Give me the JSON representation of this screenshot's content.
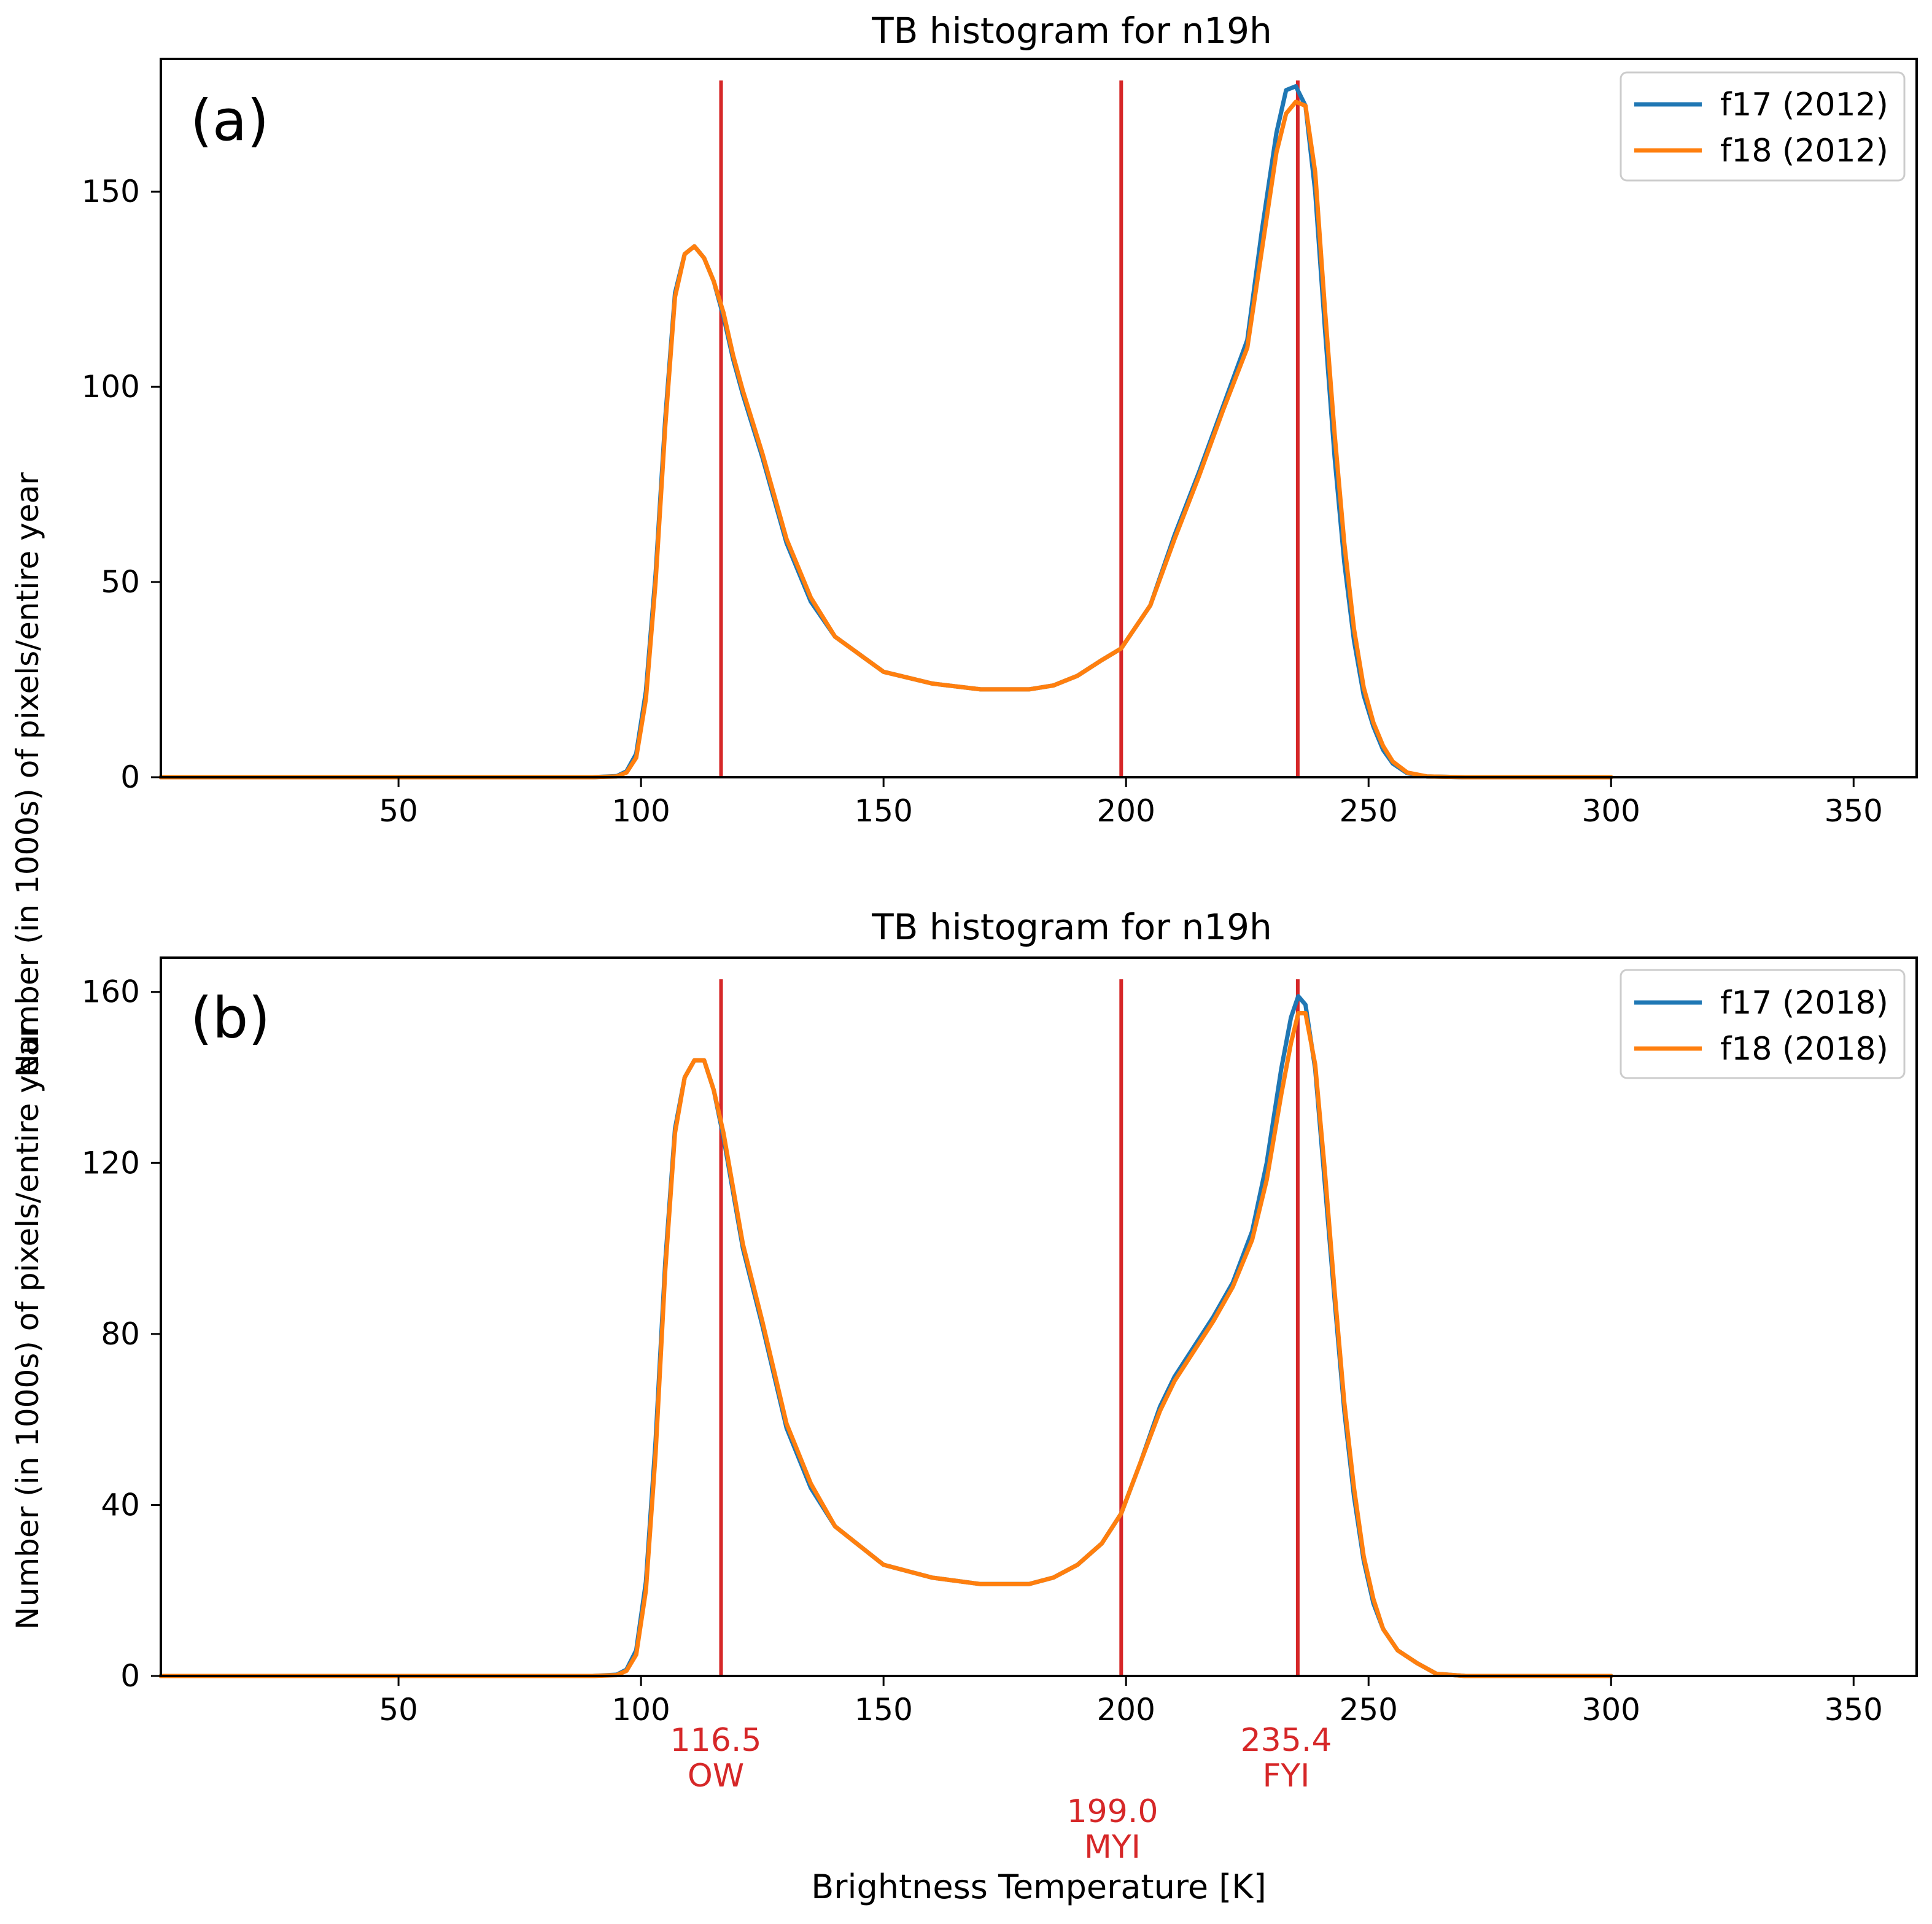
{
  "chart_data": [
    {
      "type": "line",
      "panel_label": "(a)",
      "title": "TB histogram for n19h",
      "xlabel": "",
      "ylabel": "Number (in 1000s) of pixels/entire year",
      "xlim": [
        1,
        363
      ],
      "ylim": [
        0,
        184
      ],
      "xticks": [
        50,
        100,
        150,
        200,
        250,
        300,
        350
      ],
      "yticks": [
        0,
        50,
        100,
        150
      ],
      "x": [
        1,
        90,
        95,
        97,
        99,
        101,
        103,
        105,
        107,
        109,
        111,
        113,
        115,
        117,
        119,
        121,
        125,
        130,
        135,
        140,
        150,
        160,
        170,
        180,
        185,
        190,
        195,
        199,
        205,
        210,
        215,
        220,
        225,
        228,
        231,
        233,
        235,
        237,
        239,
        241,
        243,
        245,
        247,
        249,
        251,
        253,
        255,
        258,
        262,
        270,
        300
      ],
      "series": [
        {
          "name": "f17 (2012)",
          "color": "#1f77b4",
          "y": [
            0,
            0,
            0.3,
            1.5,
            6,
            22,
            52,
            92,
            124,
            134,
            136,
            133,
            127,
            118,
            107,
            98,
            82,
            60,
            45,
            36,
            27,
            24,
            22.5,
            22.5,
            23.5,
            26,
            30,
            33,
            44,
            62,
            78,
            95,
            112,
            140,
            165,
            176,
            177,
            172,
            150,
            115,
            82,
            55,
            35,
            21,
            13,
            7,
            3.5,
            1,
            0.2,
            0,
            0
          ]
        },
        {
          "name": "f18 (2012)",
          "color": "#ff7f0e",
          "y": [
            0,
            0,
            0.2,
            1.2,
            5,
            20,
            50,
            90,
            123,
            134,
            136,
            133,
            127,
            119,
            108,
            99,
            83,
            61,
            46,
            36,
            27,
            24,
            22.5,
            22.5,
            23.5,
            26,
            30,
            33,
            44,
            61,
            77,
            94,
            110,
            135,
            160,
            170,
            173,
            172,
            155,
            120,
            88,
            60,
            38,
            23,
            14,
            8,
            4,
            1.2,
            0.2,
            0,
            0
          ]
        }
      ],
      "vlines": [
        116.5,
        199.0,
        235.4
      ],
      "vline_color": "#d62728"
    },
    {
      "type": "line",
      "panel_label": "(b)",
      "title": "TB histogram for n19h",
      "xlabel": "Brightness Temperature [K]",
      "ylabel": "Number (in 1000s) of pixels/entire year",
      "xlim": [
        1,
        363
      ],
      "ylim": [
        0,
        168
      ],
      "xticks": [
        50,
        100,
        150,
        200,
        250,
        300,
        350
      ],
      "yticks": [
        0,
        40,
        80,
        120,
        160
      ],
      "x": [
        1,
        90,
        95,
        97,
        99,
        101,
        103,
        105,
        107,
        109,
        111,
        113,
        115,
        117,
        119,
        121,
        125,
        130,
        135,
        140,
        150,
        160,
        170,
        180,
        185,
        190,
        195,
        199,
        203,
        207,
        210,
        214,
        218,
        222,
        226,
        229,
        232,
        234,
        235.5,
        237,
        239,
        241,
        243,
        245,
        247,
        249,
        251,
        253,
        256,
        260,
        264,
        270,
        300
      ],
      "series": [
        {
          "name": "f17 (2018)",
          "color": "#1f77b4",
          "y": [
            0,
            0,
            0.3,
            1.5,
            6,
            22,
            55,
            97,
            128,
            140,
            144,
            144,
            137,
            126,
            113,
            100,
            82,
            58,
            44,
            35,
            26,
            23,
            21.5,
            21.5,
            23,
            26,
            31,
            38,
            50,
            63,
            70,
            77,
            84,
            92,
            104,
            120,
            142,
            154,
            159,
            157,
            142,
            115,
            88,
            62,
            42,
            27,
            17,
            11,
            6,
            3,
            0.5,
            0,
            0
          ]
        },
        {
          "name": "f18 (2018)",
          "color": "#ff7f0e",
          "y": [
            0,
            0,
            0.2,
            1.2,
            5,
            20,
            52,
            95,
            127,
            140,
            144,
            144,
            137,
            127,
            114,
            101,
            83,
            59,
            45,
            35,
            26,
            23,
            21.5,
            21.5,
            23,
            26,
            31,
            38,
            50,
            62,
            69,
            76,
            83,
            91,
            102,
            116,
            136,
            148,
            155,
            155,
            143,
            118,
            90,
            64,
            44,
            28,
            18,
            11,
            6,
            3,
            0.5,
            0,
            0
          ]
        }
      ],
      "vlines": [
        116.5,
        199.0,
        235.4
      ],
      "vline_color": "#d62728",
      "threshold_labels": [
        {
          "value": "116.5",
          "name": "OW"
        },
        {
          "value": "199.0",
          "name": "MYI"
        },
        {
          "value": "235.4",
          "name": "FYI"
        }
      ]
    }
  ]
}
